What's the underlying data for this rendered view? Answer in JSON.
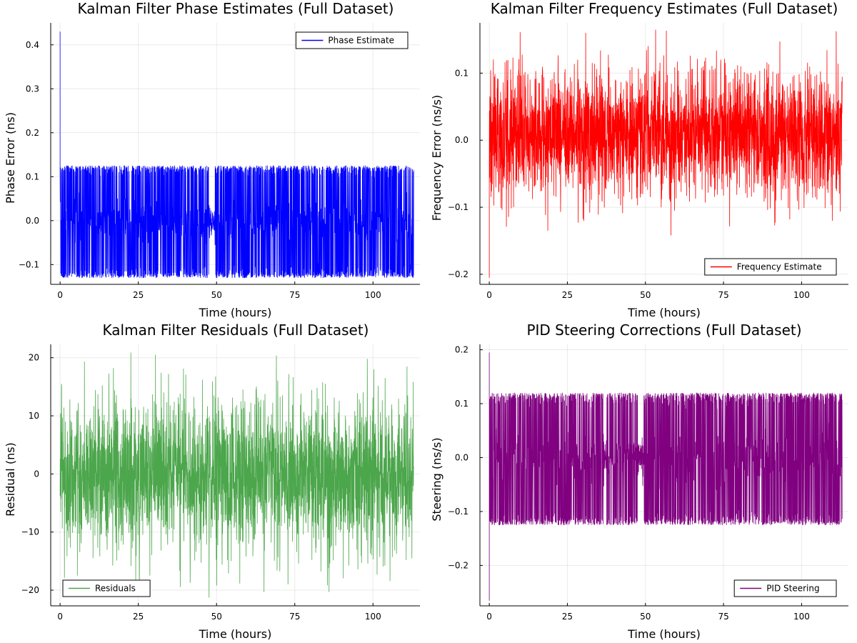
{
  "chart_data": [
    {
      "type": "line",
      "title": "Kalman Filter Phase Estimates (Full Dataset)",
      "xlabel": "Time (hours)",
      "ylabel": "Phase Error (ns)",
      "xlim": [
        -3.0,
        115.0
      ],
      "ylim": [
        -0.145,
        0.45
      ],
      "xticks": [
        0,
        25,
        50,
        75,
        100
      ],
      "yticks": [
        -0.1,
        0.0,
        0.1,
        0.2,
        0.3,
        0.4
      ],
      "xtick_labels": [
        "0",
        "25",
        "50",
        "75",
        "100"
      ],
      "ytick_labels": [
        "−0.1",
        "0.0",
        "0.1",
        "0.2",
        "0.3",
        "0.4"
      ],
      "grid": true,
      "legend_position": "top-right",
      "series": [
        {
          "name": "Phase Estimate",
          "color": "#0000ff",
          "x_range": [
            0,
            113
          ],
          "spike": [
            0.0,
            0.43
          ],
          "envelope": [
            -0.13,
            0.125
          ],
          "quiet_intervals": [
            [
              47.5,
              49.5
            ]
          ],
          "quiet_amplitude": 0.05
        }
      ]
    },
    {
      "type": "line",
      "title": "Kalman Filter Frequency Estimates (Full Dataset)",
      "xlabel": "Time (hours)",
      "ylabel": "Frequency Error (ns/s)",
      "xlim": [
        -3.0,
        115.0
      ],
      "ylim": [
        -0.215,
        0.175
      ],
      "xticks": [
        0,
        25,
        50,
        75,
        100
      ],
      "yticks": [
        -0.2,
        -0.1,
        0.0,
        0.1
      ],
      "xtick_labels": [
        "0",
        "25",
        "50",
        "75",
        "100"
      ],
      "ytick_labels": [
        "−0.2",
        "−0.1",
        "0.0",
        "0.1"
      ],
      "grid": true,
      "legend_position": "bottom-right",
      "series": [
        {
          "name": "Frequency Estimate",
          "color": "#ff0000",
          "x_range": [
            0,
            113
          ],
          "spike": [
            0.0,
            -0.205
          ],
          "envelope": [
            -0.145,
            0.165
          ]
        }
      ]
    },
    {
      "type": "line",
      "title": "Kalman Filter Residuals (Full Dataset)",
      "xlabel": "Time (hours)",
      "ylabel": "Residual (ns)",
      "xlim": [
        -3.0,
        115.0
      ],
      "ylim": [
        -22.7,
        22.3
      ],
      "xticks": [
        0,
        25,
        50,
        75,
        100
      ],
      "yticks": [
        -20,
        -10,
        0,
        10,
        20
      ],
      "xtick_labels": [
        "0",
        "25",
        "50",
        "75",
        "100"
      ],
      "ytick_labels": [
        "−20",
        "−10",
        "0",
        "10",
        "20"
      ],
      "grid": true,
      "legend_position": "bottom-left",
      "series": [
        {
          "name": "Residuals",
          "color": "#4ca64c",
          "x_range": [
            0,
            113
          ],
          "envelope": [
            -21.5,
            21.0
          ]
        }
      ]
    },
    {
      "type": "line",
      "title": "PID Steering Corrections (Full Dataset)",
      "xlabel": "Time (hours)",
      "ylabel": "Steering (ns/s)",
      "xlim": [
        -3.0,
        115.0
      ],
      "ylim": [
        -0.275,
        0.21
      ],
      "xticks": [
        0,
        25,
        50,
        75,
        100
      ],
      "yticks": [
        -0.2,
        -0.1,
        0.0,
        0.1,
        0.2
      ],
      "xtick_labels": [
        "0",
        "25",
        "50",
        "75",
        "100"
      ],
      "ytick_labels": [
        "−0.2",
        "−0.1",
        "0.0",
        "0.1",
        "0.2"
      ],
      "grid": true,
      "legend_position": "bottom-right",
      "series": [
        {
          "name": "PID Steering",
          "color": "#800080",
          "x_range": [
            0,
            113
          ],
          "spike": [
            0.0,
            -0.265
          ],
          "spike2": [
            0.0,
            0.195
          ],
          "envelope": [
            -0.125,
            0.12
          ],
          "quiet_intervals": [
            [
              36.5,
              37.5
            ],
            [
              47.5,
              49.5
            ]
          ],
          "quiet_amplitude": 0.06
        }
      ]
    }
  ]
}
